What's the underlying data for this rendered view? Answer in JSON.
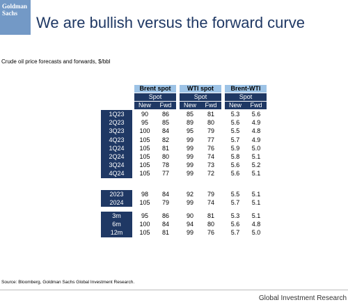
{
  "header": {
    "logo": "Goldman Sachs",
    "title": "We are bullish versus the forward curve"
  },
  "subtitle": "Crude oil price forecasts and forwards, $/bbl",
  "table": {
    "groups": [
      "Brent spot",
      "WTI spot",
      "Brent-WTI"
    ],
    "subheaders": [
      "Spot",
      "Spot",
      "Spot"
    ],
    "columns": [
      "New",
      "Fwd",
      "New",
      "Fwd",
      "New",
      "Fwd"
    ],
    "sections": [
      [
        [
          "1Q23",
          "90",
          "86",
          "85",
          "81",
          "5.3",
          "5.6"
        ],
        [
          "2Q23",
          "95",
          "85",
          "89",
          "80",
          "5.6",
          "4.9"
        ],
        [
          "3Q23",
          "100",
          "84",
          "95",
          "79",
          "5.5",
          "4.8"
        ],
        [
          "4Q23",
          "105",
          "82",
          "99",
          "77",
          "5.7",
          "4.9"
        ],
        [
          "1Q24",
          "105",
          "81",
          "99",
          "76",
          "5.9",
          "5.0"
        ],
        [
          "2Q24",
          "105",
          "80",
          "99",
          "74",
          "5.8",
          "5.1"
        ],
        [
          "3Q24",
          "105",
          "78",
          "99",
          "73",
          "5.6",
          "5.2"
        ],
        [
          "4Q24",
          "105",
          "77",
          "99",
          "72",
          "5.6",
          "5.1"
        ]
      ],
      [
        [
          "2023",
          "98",
          "84",
          "92",
          "79",
          "5.5",
          "5.1"
        ],
        [
          "2024",
          "105",
          "79",
          "99",
          "74",
          "5.7",
          "5.1"
        ]
      ],
      [
        [
          "3m",
          "95",
          "86",
          "90",
          "81",
          "5.3",
          "5.1"
        ],
        [
          "6m",
          "100",
          "84",
          "94",
          "80",
          "5.6",
          "4.8"
        ],
        [
          "12m",
          "105",
          "81",
          "99",
          "76",
          "5.7",
          "5.0"
        ]
      ]
    ]
  },
  "source": "Source: Bloomberg, Goldman Sachs Global Investment Research.",
  "footer": "Global Investment Research"
}
